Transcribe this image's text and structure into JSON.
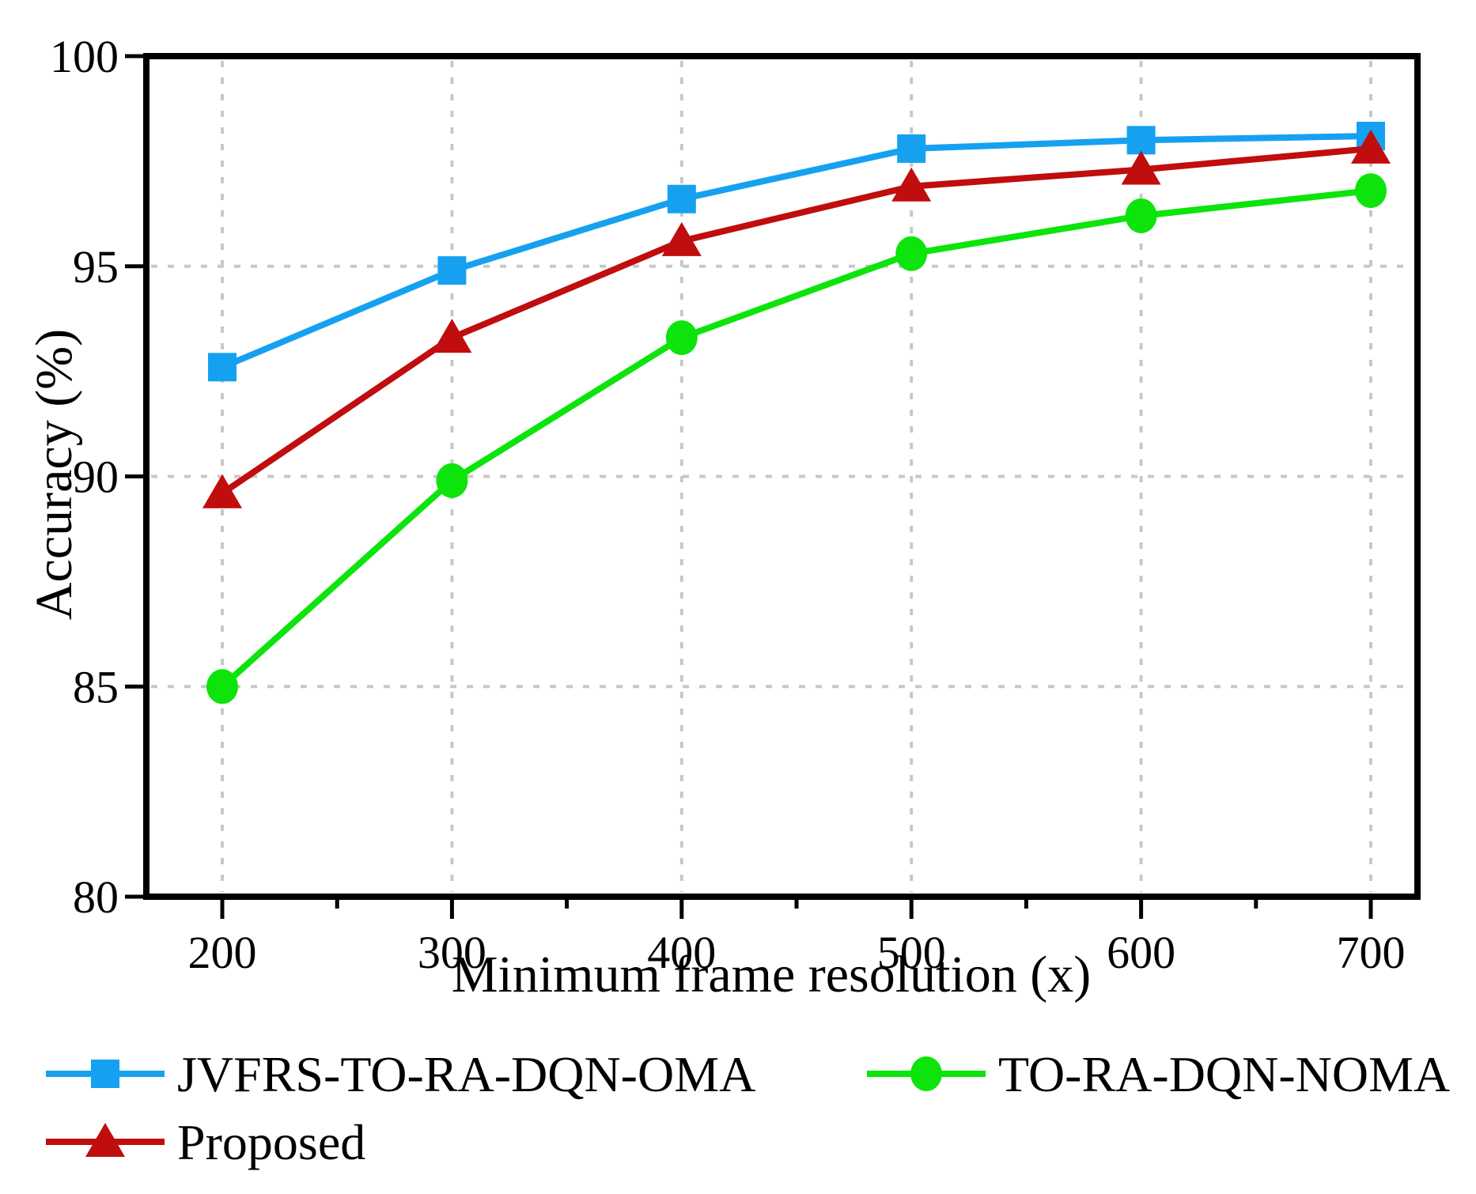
{
  "figure": {
    "background": "#ffffff"
  },
  "chart_data": {
    "type": "line",
    "title": "",
    "xlabel": "Minimum frame resolution (x)",
    "ylabel": "Accuracy (%)",
    "x": [
      200,
      300,
      400,
      500,
      600,
      700
    ],
    "series": [
      {
        "name": "JVFRS-TO-RA-DQN-OMA",
        "color": "#16A1F0",
        "marker": "square",
        "values": [
          92.6,
          94.9,
          96.6,
          97.8,
          98.0,
          98.1
        ]
      },
      {
        "name": "TO-RA-DQN-NOMA",
        "color": "#0CE40C",
        "marker": "circle",
        "values": [
          85.0,
          89.9,
          93.3,
          95.3,
          96.2,
          96.8
        ]
      },
      {
        "name": "Proposed",
        "color": "#C00D0D",
        "marker": "triangle-up",
        "values": [
          89.6,
          93.3,
          95.6,
          96.9,
          97.3,
          97.8
        ]
      }
    ],
    "xlim": [
      167,
      720
    ],
    "ylim": [
      80,
      100
    ],
    "x_major_ticks": [
      200,
      300,
      400,
      500,
      600,
      700
    ],
    "x_minor_ticks": [
      250,
      350,
      450,
      550,
      650
    ],
    "y_major_ticks": [
      80,
      85,
      90,
      95,
      100
    ],
    "x_gridlines": [
      200,
      300,
      400,
      500,
      600,
      700
    ],
    "y_gridlines": [
      85,
      90,
      95
    ],
    "grid_on": true,
    "grid_color": "#C8C8C8",
    "axis_color": "#000000",
    "legend": {
      "position": "below-axis",
      "columns": 2,
      "rows": [
        [
          "JVFRS-TO-RA-DQN-OMA",
          "TO-RA-DQN-NOMA"
        ],
        [
          "Proposed"
        ]
      ]
    }
  }
}
